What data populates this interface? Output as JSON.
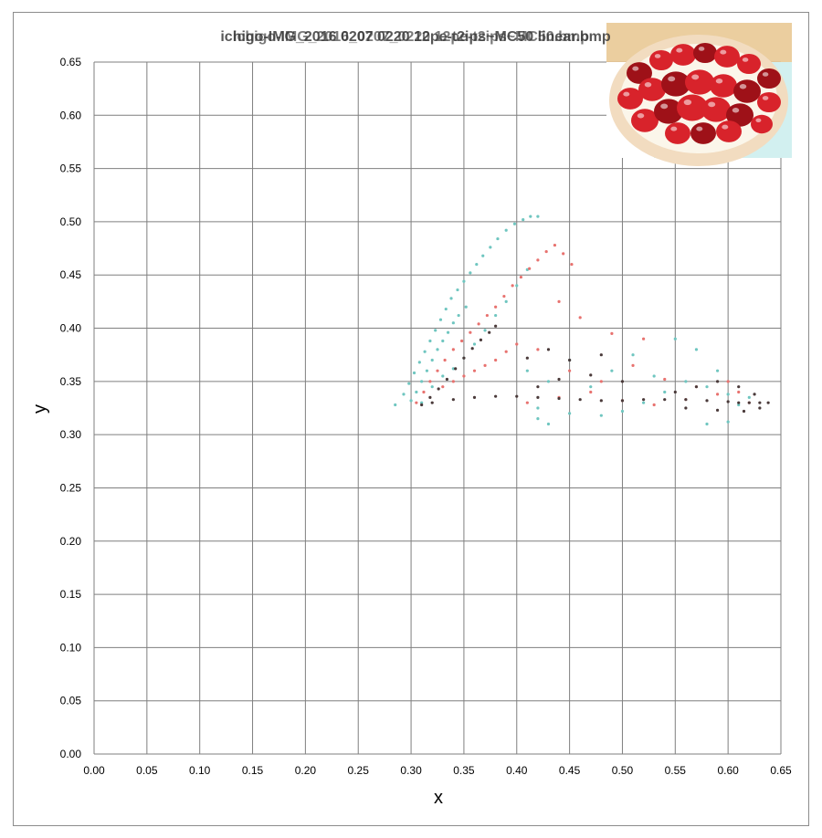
{
  "chart_data": {
    "type": "scatter",
    "title": "ichigo-IMG_2016 0207 0220 12pe-t2ips~MC50 linear.bmp",
    "title_overlay": [
      "ichigo-IMG_2016_0207_0220 12pe-t2ips~MC50.bmp",
      "ichigo-2016_0207_0220_12pe-t2ips~MC50 linear.bmp"
    ],
    "xlabel": "x",
    "ylabel": "y",
    "xlim": [
      0,
      0.65
    ],
    "ylim": [
      0,
      0.65
    ],
    "x_ticks": [
      "0.00",
      "0.05",
      "0.10",
      "0.15",
      "0.20",
      "0.25",
      "0.30",
      "0.35",
      "0.40",
      "0.45",
      "0.50",
      "0.55",
      "0.60",
      "0.65"
    ],
    "y_ticks": [
      "0.00",
      "0.05",
      "0.10",
      "0.15",
      "0.20",
      "0.25",
      "0.30",
      "0.35",
      "0.40",
      "0.45",
      "0.50",
      "0.55",
      "0.60",
      "0.65"
    ],
    "grid": true,
    "legend": "none",
    "series": [
      {
        "color": "#6fc6c0",
        "values": [
          [
            0.285,
            0.328
          ],
          [
            0.293,
            0.338
          ],
          [
            0.298,
            0.348
          ],
          [
            0.303,
            0.358
          ],
          [
            0.308,
            0.368
          ],
          [
            0.313,
            0.378
          ],
          [
            0.318,
            0.388
          ],
          [
            0.323,
            0.398
          ],
          [
            0.328,
            0.408
          ],
          [
            0.333,
            0.418
          ],
          [
            0.338,
            0.428
          ],
          [
            0.344,
            0.436
          ],
          [
            0.35,
            0.444
          ],
          [
            0.356,
            0.452
          ],
          [
            0.362,
            0.46
          ],
          [
            0.368,
            0.468
          ],
          [
            0.375,
            0.476
          ],
          [
            0.382,
            0.484
          ],
          [
            0.39,
            0.492
          ],
          [
            0.398,
            0.498
          ],
          [
            0.406,
            0.502
          ],
          [
            0.413,
            0.505
          ],
          [
            0.42,
            0.505
          ],
          [
            0.3,
            0.332
          ],
          [
            0.305,
            0.34
          ],
          [
            0.31,
            0.35
          ],
          [
            0.315,
            0.36
          ],
          [
            0.32,
            0.37
          ],
          [
            0.325,
            0.38
          ],
          [
            0.33,
            0.388
          ],
          [
            0.335,
            0.396
          ],
          [
            0.34,
            0.405
          ],
          [
            0.345,
            0.412
          ],
          [
            0.352,
            0.42
          ],
          [
            0.31,
            0.33
          ],
          [
            0.32,
            0.345
          ],
          [
            0.33,
            0.355
          ],
          [
            0.34,
            0.362
          ],
          [
            0.35,
            0.372
          ],
          [
            0.36,
            0.385
          ],
          [
            0.37,
            0.398
          ],
          [
            0.38,
            0.412
          ],
          [
            0.39,
            0.425
          ],
          [
            0.4,
            0.44
          ],
          [
            0.41,
            0.455
          ],
          [
            0.42,
            0.325
          ],
          [
            0.45,
            0.32
          ],
          [
            0.48,
            0.318
          ],
          [
            0.5,
            0.322
          ],
          [
            0.52,
            0.33
          ],
          [
            0.54,
            0.34
          ],
          [
            0.56,
            0.35
          ],
          [
            0.58,
            0.345
          ],
          [
            0.6,
            0.338
          ],
          [
            0.61,
            0.328
          ],
          [
            0.62,
            0.335
          ],
          [
            0.41,
            0.36
          ],
          [
            0.43,
            0.35
          ],
          [
            0.45,
            0.37
          ],
          [
            0.47,
            0.345
          ],
          [
            0.49,
            0.36
          ],
          [
            0.51,
            0.375
          ],
          [
            0.53,
            0.355
          ],
          [
            0.55,
            0.39
          ],
          [
            0.57,
            0.38
          ],
          [
            0.59,
            0.36
          ],
          [
            0.6,
            0.312
          ],
          [
            0.58,
            0.31
          ],
          [
            0.42,
            0.315
          ],
          [
            0.43,
            0.31
          ]
        ]
      },
      {
        "color": "#e8726f",
        "values": [
          [
            0.305,
            0.33
          ],
          [
            0.312,
            0.34
          ],
          [
            0.318,
            0.35
          ],
          [
            0.325,
            0.36
          ],
          [
            0.332,
            0.37
          ],
          [
            0.34,
            0.38
          ],
          [
            0.348,
            0.388
          ],
          [
            0.356,
            0.396
          ],
          [
            0.364,
            0.404
          ],
          [
            0.372,
            0.412
          ],
          [
            0.38,
            0.42
          ],
          [
            0.388,
            0.43
          ],
          [
            0.396,
            0.44
          ],
          [
            0.404,
            0.448
          ],
          [
            0.412,
            0.456
          ],
          [
            0.42,
            0.464
          ],
          [
            0.428,
            0.472
          ],
          [
            0.436,
            0.478
          ],
          [
            0.444,
            0.47
          ],
          [
            0.452,
            0.46
          ],
          [
            0.33,
            0.345
          ],
          [
            0.34,
            0.35
          ],
          [
            0.35,
            0.355
          ],
          [
            0.36,
            0.36
          ],
          [
            0.37,
            0.365
          ],
          [
            0.38,
            0.37
          ],
          [
            0.39,
            0.378
          ],
          [
            0.4,
            0.385
          ],
          [
            0.41,
            0.33
          ],
          [
            0.44,
            0.335
          ],
          [
            0.47,
            0.34
          ],
          [
            0.5,
            0.332
          ],
          [
            0.53,
            0.328
          ],
          [
            0.56,
            0.333
          ],
          [
            0.59,
            0.338
          ],
          [
            0.62,
            0.33
          ],
          [
            0.42,
            0.38
          ],
          [
            0.45,
            0.36
          ],
          [
            0.48,
            0.35
          ],
          [
            0.51,
            0.365
          ],
          [
            0.54,
            0.352
          ],
          [
            0.57,
            0.345
          ],
          [
            0.46,
            0.41
          ],
          [
            0.44,
            0.425
          ],
          [
            0.49,
            0.395
          ],
          [
            0.52,
            0.39
          ],
          [
            0.6,
            0.35
          ],
          [
            0.61,
            0.34
          ]
        ]
      },
      {
        "color": "#4a3a3a",
        "values": [
          [
            0.31,
            0.328
          ],
          [
            0.318,
            0.335
          ],
          [
            0.326,
            0.343
          ],
          [
            0.334,
            0.352
          ],
          [
            0.342,
            0.362
          ],
          [
            0.35,
            0.372
          ],
          [
            0.358,
            0.381
          ],
          [
            0.366,
            0.389
          ],
          [
            0.374,
            0.396
          ],
          [
            0.38,
            0.402
          ],
          [
            0.32,
            0.33
          ],
          [
            0.34,
            0.333
          ],
          [
            0.36,
            0.335
          ],
          [
            0.38,
            0.336
          ],
          [
            0.4,
            0.336
          ],
          [
            0.42,
            0.335
          ],
          [
            0.44,
            0.334
          ],
          [
            0.46,
            0.333
          ],
          [
            0.48,
            0.332
          ],
          [
            0.5,
            0.332
          ],
          [
            0.52,
            0.333
          ],
          [
            0.54,
            0.333
          ],
          [
            0.56,
            0.333
          ],
          [
            0.58,
            0.332
          ],
          [
            0.6,
            0.331
          ],
          [
            0.61,
            0.33
          ],
          [
            0.62,
            0.33
          ],
          [
            0.63,
            0.33
          ],
          [
            0.638,
            0.33
          ],
          [
            0.55,
            0.34
          ],
          [
            0.57,
            0.345
          ],
          [
            0.59,
            0.35
          ],
          [
            0.61,
            0.345
          ],
          [
            0.625,
            0.338
          ],
          [
            0.56,
            0.325
          ],
          [
            0.59,
            0.323
          ],
          [
            0.615,
            0.322
          ],
          [
            0.63,
            0.325
          ],
          [
            0.42,
            0.345
          ],
          [
            0.44,
            0.352
          ],
          [
            0.47,
            0.356
          ],
          [
            0.5,
            0.35
          ],
          [
            0.45,
            0.37
          ],
          [
            0.48,
            0.375
          ],
          [
            0.43,
            0.38
          ],
          [
            0.41,
            0.372
          ]
        ]
      }
    ]
  },
  "inset_image": {
    "icon": "strawberry-tart-photo",
    "colors": {
      "crust": "#f2dcc0",
      "cream": "#fbf6ea",
      "berry": "#d8232b",
      "berry_dark": "#9e1118",
      "board": "#e8c58e",
      "tint": "#bfe9ea"
    }
  },
  "style": {
    "grid_color": "#7f7f7f",
    "title_color_a": "#7a7a7a",
    "title_color_b": "#3a3a3a"
  }
}
